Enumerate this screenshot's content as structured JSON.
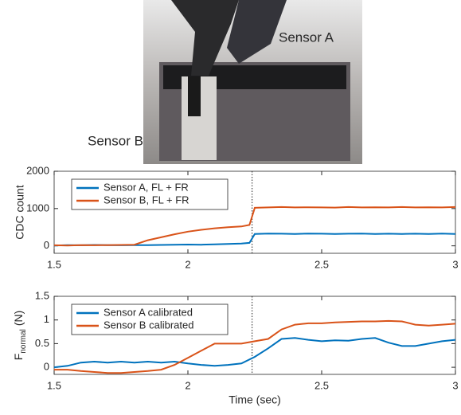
{
  "photo": {
    "labels": [
      "Sensor A",
      "Sensor B"
    ]
  },
  "chart_data": [
    {
      "type": "line",
      "ylabel": "CDC count",
      "x": [
        1.5,
        1.55,
        1.6,
        1.65,
        1.7,
        1.75,
        1.8,
        1.85,
        1.9,
        1.95,
        2.0,
        2.05,
        2.1,
        2.15,
        2.2,
        2.23,
        2.25,
        2.3,
        2.35,
        2.4,
        2.45,
        2.5,
        2.55,
        2.6,
        2.65,
        2.7,
        2.75,
        2.8,
        2.85,
        2.9,
        2.95,
        3.0
      ],
      "series": [
        {
          "name": "Sensor A, FL + FR",
          "color": "#0072bd",
          "values": [
            10,
            20,
            15,
            25,
            20,
            15,
            20,
            20,
            25,
            30,
            35,
            30,
            40,
            50,
            60,
            80,
            320,
            330,
            325,
            320,
            330,
            325,
            320,
            325,
            330,
            320,
            325,
            320,
            325,
            320,
            330,
            320
          ]
        },
        {
          "name": "Sensor B, FL + FR",
          "color": "#d95319",
          "values": [
            15,
            10,
            20,
            15,
            20,
            25,
            30,
            150,
            230,
            310,
            380,
            430,
            470,
            500,
            520,
            560,
            1020,
            1030,
            1040,
            1030,
            1035,
            1030,
            1025,
            1040,
            1030,
            1035,
            1030,
            1040,
            1030,
            1035,
            1030,
            1040
          ]
        }
      ],
      "xlim": [
        1.5,
        3
      ],
      "xticks": [
        1.5,
        2,
        2.5,
        3
      ],
      "ylim": [
        -200,
        2000
      ],
      "yticks": [
        0,
        1000,
        2000
      ],
      "vline": 2.24,
      "legend": "upper left"
    },
    {
      "type": "line",
      "ylabel": {
        "main": "F",
        "sub": "normal",
        "unit": "(N)"
      },
      "xlabel": "Time (sec)",
      "x": [
        1.5,
        1.55,
        1.6,
        1.65,
        1.7,
        1.75,
        1.8,
        1.85,
        1.9,
        1.95,
        2.0,
        2.05,
        2.1,
        2.15,
        2.2,
        2.25,
        2.3,
        2.35,
        2.4,
        2.45,
        2.5,
        2.55,
        2.6,
        2.65,
        2.7,
        2.75,
        2.8,
        2.85,
        2.9,
        2.95,
        3.0
      ],
      "series": [
        {
          "name": "Sensor A calibrated",
          "color": "#0072bd",
          "values": [
            0,
            0.03,
            0.1,
            0.12,
            0.1,
            0.12,
            0.1,
            0.12,
            0.1,
            0.12,
            0.08,
            0.05,
            0.03,
            0.05,
            0.08,
            0.22,
            0.4,
            0.6,
            0.62,
            0.58,
            0.55,
            0.57,
            0.56,
            0.6,
            0.62,
            0.52,
            0.45,
            0.45,
            0.5,
            0.55,
            0.58
          ]
        },
        {
          "name": "Sensor B calibrated",
          "color": "#d95319",
          "values": [
            -0.05,
            -0.05,
            -0.08,
            -0.1,
            -0.12,
            -0.12,
            -0.1,
            -0.08,
            -0.05,
            0.05,
            0.2,
            0.35,
            0.5,
            0.5,
            0.5,
            0.55,
            0.6,
            0.8,
            0.9,
            0.93,
            0.93,
            0.95,
            0.96,
            0.97,
            0.97,
            0.98,
            0.97,
            0.9,
            0.88,
            0.9,
            0.92
          ]
        }
      ],
      "xlim": [
        1.5,
        3
      ],
      "xticks": [
        1.5,
        2,
        2.5,
        3
      ],
      "ylim": [
        -0.15,
        1.5
      ],
      "yticks": [
        0,
        0.5,
        1,
        1.5
      ],
      "vline": 2.24,
      "legend": "upper left"
    }
  ]
}
